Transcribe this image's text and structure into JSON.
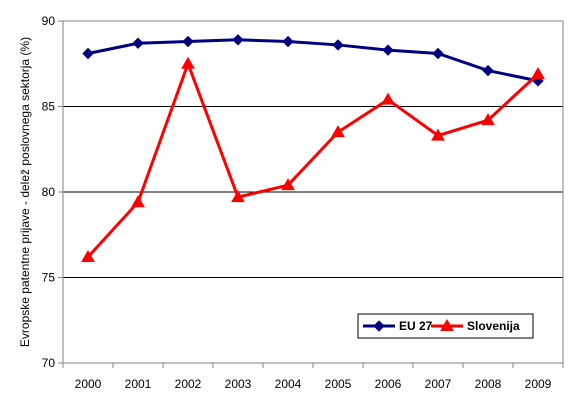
{
  "chart_data": {
    "type": "line",
    "title": "",
    "xlabel": "",
    "ylabel": "Evropske patentne prijave - delež poslovnega sektorja (%)",
    "x": [
      "2000",
      "2001",
      "2002",
      "2003",
      "2004",
      "2005",
      "2006",
      "2007",
      "2008",
      "2009"
    ],
    "ylim": [
      70,
      90
    ],
    "yticks": [
      "70",
      "75",
      "80",
      "85",
      "90"
    ],
    "grid": "horizontal major",
    "legend_position": "bottom-right",
    "series": [
      {
        "name": "EU 27",
        "color": "#000080",
        "marker": "diamond",
        "values": [
          88.1,
          88.7,
          88.8,
          88.9,
          88.8,
          88.6,
          88.3,
          88.1,
          87.1,
          86.5
        ]
      },
      {
        "name": "Slovenija",
        "color": "#FF0000",
        "marker": "triangle",
        "values": [
          76.2,
          79.4,
          87.5,
          79.7,
          80.4,
          83.5,
          85.4,
          83.3,
          84.2,
          86.9
        ]
      }
    ]
  }
}
